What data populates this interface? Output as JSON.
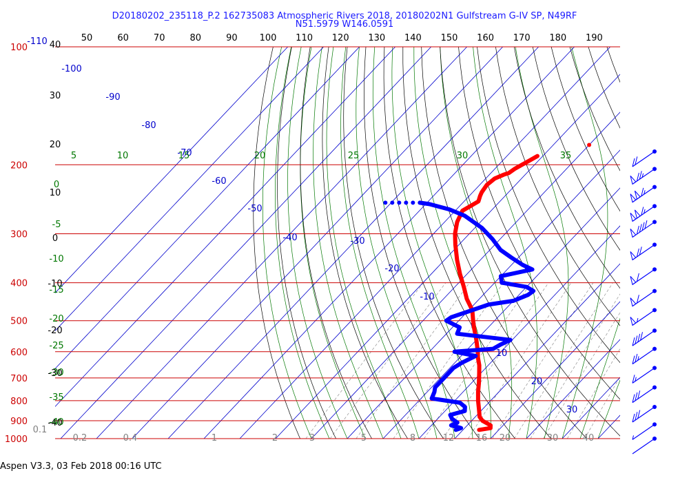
{
  "header": {
    "line1": "D20180202_235118_P.2 162735083 Atmospheric Rivers 2018, 20180202N1 Gulfstream G-IV SP, N49RF",
    "line2": "N51.5979 W146.0591"
  },
  "footer": {
    "text": "Aspen V3.3, 03 Feb 2018  00:16 UTC"
  },
  "colors": {
    "temperature": "#ff0000",
    "dewpoint": "#0000ff",
    "isobar": "#cc0000",
    "isotherm": "#0000cc",
    "dry_adiabat": "#000000",
    "moist_adiabat": "#007700",
    "mixing_ratio": "#808080",
    "mixing_ratio_label": "#808080",
    "potential_temp_label": "#000000"
  },
  "chart_data": {
    "type": "line",
    "diagram": "skew-T log-P",
    "pressure_axis": {
      "unit": "hPa",
      "levels": [
        100,
        200,
        300,
        400,
        500,
        600,
        700,
        800,
        900,
        1000
      ],
      "labels": [
        "100",
        "200",
        "300",
        "400",
        "500",
        "600",
        "700",
        "800",
        "900",
        "1000"
      ],
      "scale": "log",
      "range": [
        1000,
        100
      ]
    },
    "top_axis": {
      "labels": [
        "50",
        "60",
        "70",
        "80",
        "90",
        "100",
        "110",
        "120",
        "130",
        "140",
        "150",
        "160",
        "170",
        "180",
        "190"
      ]
    },
    "isotherm_labels": [
      "-110",
      "-100",
      "-90",
      "-80",
      "-70",
      "-60",
      "-50",
      "-40",
      "-30",
      "-20",
      "-10",
      "0",
      "10",
      "20",
      "30"
    ],
    "isotherm_range": [
      -110,
      40
    ],
    "left_theta_labels": [
      "40",
      "30",
      "20",
      "10",
      "0",
      "-10",
      "-20",
      "-30",
      "-40"
    ],
    "moist_labels": [
      "5",
      "10",
      "15",
      "20",
      "25",
      "30",
      "35"
    ],
    "moist_left_labels": [
      "0",
      "-5",
      "-10",
      "-15",
      "-20",
      "-25",
      "-30",
      "-35",
      "-40"
    ],
    "mixing_ratio_labels": [
      "0.1",
      "0.2",
      "0.4",
      "1",
      "2",
      "3",
      "5",
      "8",
      "12",
      "16",
      "20",
      "30",
      "40"
    ],
    "series": [
      {
        "name": "",
        "kind": "temperature",
        "points": [
          [
            950,
            4.5
          ],
          [
            940,
            7.2
          ],
          [
            925,
            6.5
          ],
          [
            900,
            3.0
          ],
          [
            880,
            1.2
          ],
          [
            850,
            -0.5
          ],
          [
            800,
            -3.5
          ],
          [
            760,
            -5.8
          ],
          [
            720,
            -8.0
          ],
          [
            680,
            -10.5
          ],
          [
            650,
            -12.5
          ],
          [
            620,
            -15.0
          ],
          [
            600,
            -16.5
          ],
          [
            560,
            -20.0
          ],
          [
            520,
            -24.0
          ],
          [
            500,
            -26.0
          ],
          [
            470,
            -29.0
          ],
          [
            440,
            -33.5
          ],
          [
            410,
            -37.5
          ],
          [
            380,
            -42.0
          ],
          [
            350,
            -46.5
          ],
          [
            320,
            -51.0
          ],
          [
            300,
            -54.0
          ],
          [
            280,
            -56.5
          ],
          [
            262,
            -58.0
          ],
          [
            255,
            -57.0
          ],
          [
            248,
            -56.0
          ],
          [
            240,
            -57.0
          ],
          [
            235,
            -57.5
          ],
          [
            225,
            -58.0
          ],
          [
            217,
            -57.5
          ],
          [
            212,
            -56.0
          ],
          [
            210,
            -55.0
          ],
          [
            205,
            -54.5
          ],
          [
            200,
            -53.5
          ],
          [
            195,
            -52.5
          ],
          [
            190,
            -51.5
          ]
        ]
      },
      {
        "name": "",
        "kind": "dewpoint",
        "points": [
          [
            950,
            -2.0
          ],
          [
            940,
            -1.0
          ],
          [
            925,
            -4.5
          ],
          [
            910,
            -3.5
          ],
          [
            890,
            -6.0
          ],
          [
            870,
            -7.5
          ],
          [
            850,
            -4.5
          ],
          [
            830,
            -5.5
          ],
          [
            810,
            -8.0
          ],
          [
            790,
            -17.0
          ],
          [
            760,
            -18.0
          ],
          [
            740,
            -19.0
          ],
          [
            700,
            -19.0
          ],
          [
            660,
            -19.0
          ],
          [
            640,
            -18.0
          ],
          [
            615,
            -16.0
          ],
          [
            600,
            -23.0
          ],
          [
            590,
            -13.0
          ],
          [
            575,
            -12.0
          ],
          [
            560,
            -10.5
          ],
          [
            540,
            -27.0
          ],
          [
            520,
            -28.0
          ],
          [
            500,
            -33.5
          ],
          [
            490,
            -33.0
          ],
          [
            470,
            -29.0
          ],
          [
            455,
            -26.0
          ],
          [
            445,
            -20.0
          ],
          [
            430,
            -17.5
          ],
          [
            420,
            -17.0
          ],
          [
            410,
            -20.0
          ],
          [
            400,
            -28.0
          ],
          [
            385,
            -30.0
          ],
          [
            370,
            -23.0
          ],
          [
            360,
            -27.0
          ],
          [
            345,
            -32.0
          ],
          [
            330,
            -37.0
          ],
          [
            310,
            -42.0
          ],
          [
            290,
            -48.0
          ],
          [
            270,
            -56.0
          ],
          [
            260,
            -62.0
          ],
          [
            252,
            -69.0
          ],
          [
            250,
            -72.0
          ]
        ]
      },
      {
        "name": "",
        "kind": "point",
        "points": [
          [
            178,
            -40.0
          ]
        ]
      }
    ]
  },
  "wind_barbs": [
    {
      "pressure": 185,
      "speed": 20
    },
    {
      "pressure": 205,
      "speed": 75
    },
    {
      "pressure": 228,
      "speed": 115
    },
    {
      "pressure": 255,
      "speed": 115
    },
    {
      "pressure": 280,
      "speed": 90
    },
    {
      "pressure": 320,
      "speed": 70
    },
    {
      "pressure": 370,
      "speed": 60
    },
    {
      "pressure": 420,
      "speed": 60
    },
    {
      "pressure": 470,
      "speed": 55
    },
    {
      "pressure": 530,
      "speed": 40
    },
    {
      "pressure": 590,
      "speed": 25
    },
    {
      "pressure": 660,
      "speed": 15
    },
    {
      "pressure": 740,
      "speed": 30
    },
    {
      "pressure": 830,
      "speed": 30
    },
    {
      "pressure": 920,
      "speed": 5
    },
    {
      "pressure": 1000,
      "speed": 0
    }
  ]
}
